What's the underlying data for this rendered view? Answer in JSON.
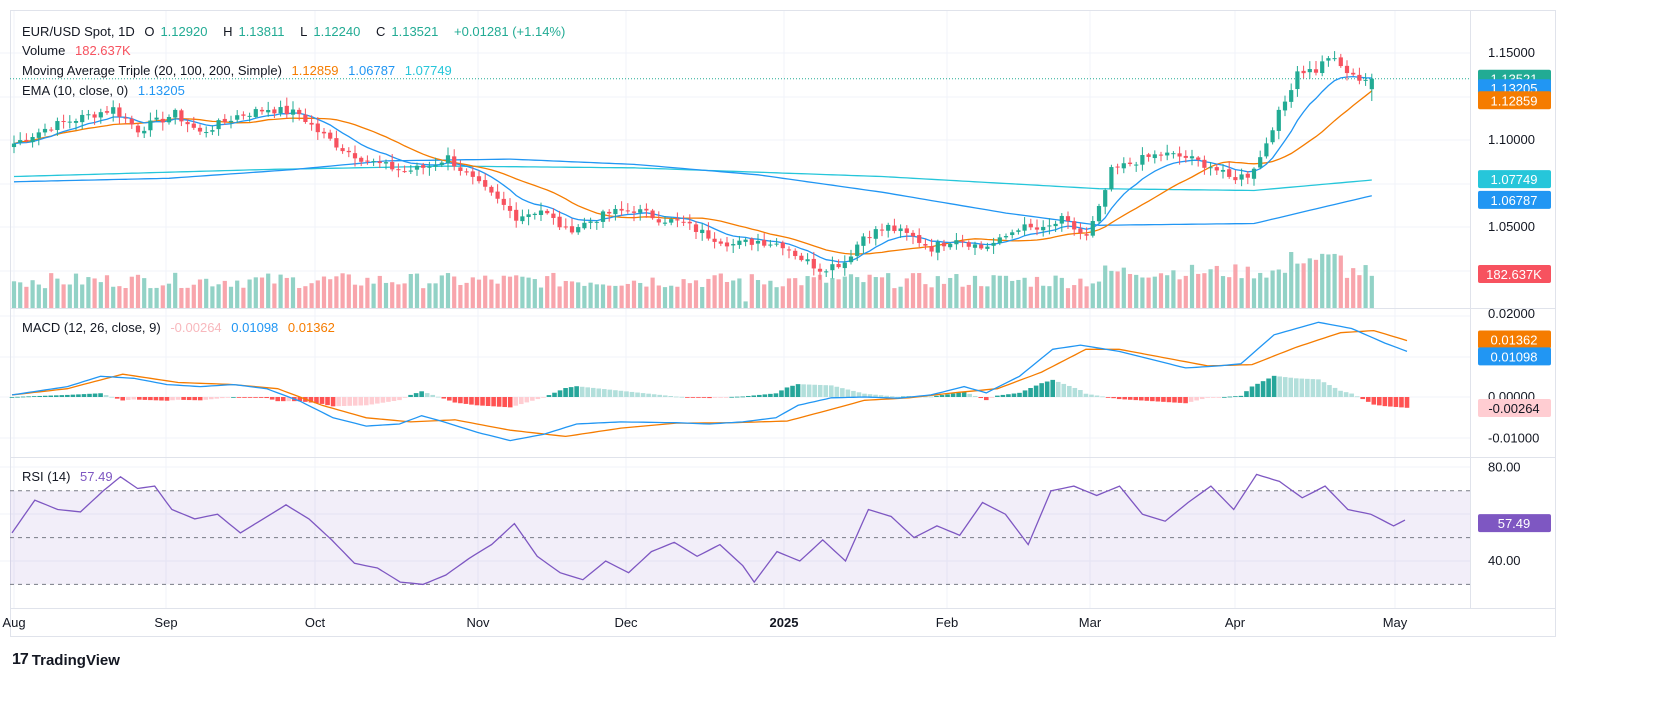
{
  "header": {
    "symbol": "EUR/USD Spot, 1D",
    "open_key": "O",
    "open": "1.12920",
    "high_key": "H",
    "high": "1.13811",
    "low_key": "L",
    "low": "1.12240",
    "close_key": "C",
    "close": "1.13521",
    "change": "+0.01281 (+1.14%)"
  },
  "legends": {
    "volume": {
      "label": "Volume",
      "value": "182.637K"
    },
    "ma_triple": {
      "label": "Moving Average Triple (20, 100, 200, Simple)",
      "values": [
        "1.12859",
        "1.06787",
        "1.07749"
      ]
    },
    "ema": {
      "label": "EMA (10, close, 0)",
      "value": "1.13205"
    },
    "macd": {
      "label": "MACD (12, 26, close, 9)",
      "values": [
        "-0.00264",
        "0.01098",
        "0.01362"
      ]
    },
    "rsi": {
      "label": "RSI (14)",
      "value": "57.49"
    }
  },
  "branding": {
    "name": "TradingView"
  },
  "colors": {
    "up": "#22ab94",
    "down": "#f7525f",
    "up_vol": "#92d2c6",
    "down_vol": "#f8a5ac",
    "ema10": "#2196f3",
    "sma20": "#f57c00",
    "sma100": "#2196f3",
    "sma200": "#26c6da",
    "macd": "#2196f3",
    "signal": "#f57c00",
    "rsi": "#7e57c2"
  },
  "chart_data": [
    {
      "type": "candlestick",
      "name": "price",
      "yaxis_ticks": [
        "1.15000",
        "1.10000",
        "1.05000"
      ],
      "price_labels": [
        {
          "value": "1.13521",
          "series": "close"
        },
        {
          "value": "1.13205",
          "series": "ema10"
        },
        {
          "value": "1.12859",
          "series": "sma20"
        },
        {
          "value": "1.07749",
          "series": "sma200"
        },
        {
          "value": "1.06787",
          "series": "sma100"
        },
        {
          "value": "182.637K",
          "series": "volume"
        }
      ],
      "xaxis_labels": [
        "Aug",
        "Sep",
        "Oct",
        "Nov",
        "Dec",
        "2025",
        "Feb",
        "Mar",
        "Apr",
        "May"
      ],
      "anchors": [
        [
          0,
          1.098
        ],
        [
          6,
          1.108
        ],
        [
          10,
          1.112
        ],
        [
          16,
          1.118
        ],
        [
          20,
          1.106
        ],
        [
          26,
          1.115
        ],
        [
          30,
          1.104
        ],
        [
          36,
          1.114
        ],
        [
          41,
          1.118
        ],
        [
          46,
          1.115
        ],
        [
          49,
          1.105
        ],
        [
          53,
          1.095
        ],
        [
          57,
          1.088
        ],
        [
          63,
          1.082
        ],
        [
          67,
          1.085
        ],
        [
          70,
          1.09
        ],
        [
          73,
          1.08
        ],
        [
          77,
          1.068
        ],
        [
          81,
          1.056
        ],
        [
          85,
          1.06
        ],
        [
          89,
          1.048
        ],
        [
          92,
          1.052
        ],
        [
          96,
          1.058
        ],
        [
          100,
          1.06
        ],
        [
          104,
          1.055
        ],
        [
          108,
          1.052
        ],
        [
          112,
          1.045
        ],
        [
          116,
          1.04
        ],
        [
          120,
          1.042
        ],
        [
          124,
          1.04
        ],
        [
          127,
          1.032
        ],
        [
          130,
          1.026
        ],
        [
          134,
          1.03
        ],
        [
          137,
          1.045
        ],
        [
          141,
          1.05
        ],
        [
          145,
          1.044
        ],
        [
          148,
          1.038
        ],
        [
          152,
          1.044
        ],
        [
          156,
          1.038
        ],
        [
          159,
          1.042
        ],
        [
          162,
          1.05
        ],
        [
          166,
          1.048
        ],
        [
          169,
          1.054
        ],
        [
          173,
          1.044
        ],
        [
          175,
          1.06
        ],
        [
          177,
          1.082
        ],
        [
          181,
          1.088
        ],
        [
          185,
          1.092
        ],
        [
          189,
          1.09
        ],
        [
          193,
          1.085
        ],
        [
          196,
          1.078
        ],
        [
          199,
          1.08
        ],
        [
          201,
          1.09
        ],
        [
          203,
          1.108
        ],
        [
          205,
          1.122
        ],
        [
          207,
          1.14
        ],
        [
          210,
          1.14
        ],
        [
          212,
          1.148
        ],
        [
          214,
          1.142
        ],
        [
          216,
          1.136
        ],
        [
          219,
          1.135
        ]
      ],
      "volume_range": [
        0,
        260
      ],
      "sma200_anchors": [
        [
          0,
          1.079
        ],
        [
          40,
          1.083
        ],
        [
          70,
          1.085
        ],
        [
          100,
          1.084
        ],
        [
          140,
          1.079
        ],
        [
          175,
          1.072
        ],
        [
          200,
          1.071
        ],
        [
          219,
          1.077
        ]
      ],
      "sma100_anchors": [
        [
          0,
          1.076
        ],
        [
          25,
          1.078
        ],
        [
          45,
          1.083
        ],
        [
          60,
          1.088
        ],
        [
          80,
          1.089
        ],
        [
          100,
          1.086
        ],
        [
          120,
          1.08
        ],
        [
          140,
          1.07
        ],
        [
          160,
          1.058
        ],
        [
          175,
          1.051
        ],
        [
          200,
          1.052
        ],
        [
          219,
          1.068
        ]
      ]
    },
    {
      "type": "line",
      "name": "macd",
      "yaxis_ticks": [
        "0.02000",
        "0.00000",
        "-0.01000"
      ],
      "price_labels": [
        {
          "value": "0.01362",
          "series": "signal"
        },
        {
          "value": "0.01098",
          "series": "macd"
        },
        {
          "value": "-0.00264",
          "series": "histogram"
        }
      ],
      "macd_anchors": [
        [
          0,
          0.0005
        ],
        [
          10,
          0.0025
        ],
        [
          16,
          0.005
        ],
        [
          22,
          0.0045
        ],
        [
          28,
          0.003
        ],
        [
          34,
          0.0025
        ],
        [
          40,
          0.003
        ],
        [
          46,
          0.002
        ],
        [
          52,
          -0.001
        ],
        [
          58,
          -0.005
        ],
        [
          64,
          -0.007
        ],
        [
          70,
          -0.0065
        ],
        [
          74,
          -0.0045
        ],
        [
          78,
          -0.006
        ],
        [
          84,
          -0.0085
        ],
        [
          90,
          -0.0105
        ],
        [
          96,
          -0.009
        ],
        [
          102,
          -0.0065
        ],
        [
          110,
          -0.006
        ],
        [
          120,
          -0.0062
        ],
        [
          126,
          -0.0065
        ],
        [
          132,
          -0.006
        ],
        [
          138,
          -0.005
        ],
        [
          142,
          -0.002
        ],
        [
          148,
          -0.0002
        ],
        [
          154,
          0.0
        ],
        [
          160,
          -0.0003
        ],
        [
          166,
          0.0005
        ],
        [
          172,
          0.0025
        ],
        [
          176,
          0.001
        ],
        [
          182,
          0.005
        ],
        [
          188,
          0.0115
        ],
        [
          193,
          0.0125
        ],
        [
          200,
          0.011
        ],
        [
          206,
          0.009
        ],
        [
          212,
          0.007
        ],
        [
          218,
          0.0075
        ],
        [
          222,
          0.008
        ],
        [
          228,
          0.015
        ],
        [
          236,
          0.018
        ],
        [
          242,
          0.0165
        ],
        [
          248,
          0.013
        ],
        [
          252,
          0.011
        ]
      ],
      "signal_anchors": [
        [
          0,
          0.0005
        ],
        [
          10,
          0.002
        ],
        [
          20,
          0.0055
        ],
        [
          30,
          0.0035
        ],
        [
          40,
          0.003
        ],
        [
          48,
          0.002
        ],
        [
          56,
          -0.002
        ],
        [
          64,
          -0.005
        ],
        [
          72,
          -0.006
        ],
        [
          80,
          -0.0055
        ],
        [
          90,
          -0.008
        ],
        [
          100,
          -0.0095
        ],
        [
          110,
          -0.0075
        ],
        [
          120,
          -0.0063
        ],
        [
          130,
          -0.0062
        ],
        [
          140,
          -0.0058
        ],
        [
          148,
          -0.003
        ],
        [
          154,
          -0.0008
        ],
        [
          162,
          -0.0002
        ],
        [
          170,
          0.001
        ],
        [
          178,
          0.002
        ],
        [
          186,
          0.006
        ],
        [
          194,
          0.0115
        ],
        [
          200,
          0.0115
        ],
        [
          208,
          0.0095
        ],
        [
          216,
          0.0075
        ],
        [
          224,
          0.0078
        ],
        [
          232,
          0.012
        ],
        [
          240,
          0.0155
        ],
        [
          246,
          0.016
        ],
        [
          252,
          0.0136
        ]
      ]
    },
    {
      "type": "line",
      "name": "rsi",
      "yaxis_ticks": [
        "80.00",
        "40.00"
      ],
      "price_labels": [
        {
          "value": "57.49",
          "series": "rsi"
        }
      ],
      "bands": [
        70,
        30
      ],
      "midline": 50,
      "rsi_anchors": [
        [
          0,
          52
        ],
        [
          4,
          66
        ],
        [
          8,
          62
        ],
        [
          12,
          61
        ],
        [
          16,
          70
        ],
        [
          19,
          76
        ],
        [
          22,
          71
        ],
        [
          25,
          72
        ],
        [
          28,
          62
        ],
        [
          32,
          58
        ],
        [
          36,
          60
        ],
        [
          40,
          52
        ],
        [
          44,
          58
        ],
        [
          48,
          64
        ],
        [
          52,
          58
        ],
        [
          56,
          49
        ],
        [
          60,
          39
        ],
        [
          64,
          37
        ],
        [
          68,
          31
        ],
        [
          72,
          30
        ],
        [
          76,
          34
        ],
        [
          80,
          41
        ],
        [
          84,
          47
        ],
        [
          88,
          56
        ],
        [
          92,
          42
        ],
        [
          96,
          35
        ],
        [
          100,
          32
        ],
        [
          104,
          40
        ],
        [
          108,
          35
        ],
        [
          112,
          44
        ],
        [
          116,
          48
        ],
        [
          120,
          42
        ],
        [
          124,
          47
        ],
        [
          128,
          38
        ],
        [
          130,
          31
        ],
        [
          134,
          44
        ],
        [
          138,
          40
        ],
        [
          142,
          49
        ],
        [
          146,
          40
        ],
        [
          150,
          62
        ],
        [
          154,
          59
        ],
        [
          158,
          50
        ],
        [
          162,
          55
        ],
        [
          166,
          51
        ],
        [
          170,
          65
        ],
        [
          174,
          60
        ],
        [
          178,
          47
        ],
        [
          182,
          70
        ],
        [
          186,
          72
        ],
        [
          190,
          68
        ],
        [
          194,
          72
        ],
        [
          198,
          60
        ],
        [
          202,
          57
        ],
        [
          206,
          65
        ],
        [
          210,
          72
        ],
        [
          214,
          62
        ],
        [
          218,
          77
        ],
        [
          222,
          74
        ],
        [
          226,
          67
        ],
        [
          230,
          72
        ],
        [
          234,
          62
        ],
        [
          238,
          60
        ],
        [
          242,
          55
        ],
        [
          244,
          57.49
        ]
      ]
    }
  ]
}
